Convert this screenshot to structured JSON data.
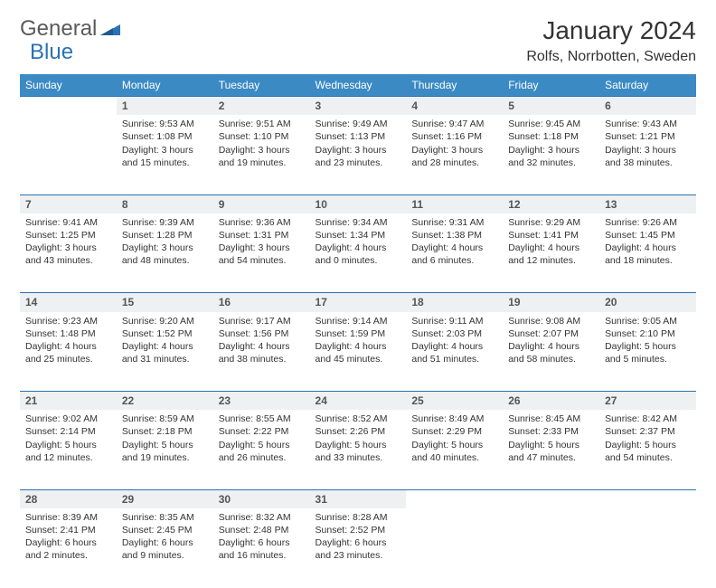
{
  "logo": {
    "part1": "General",
    "part2": "Blue"
  },
  "title": "January 2024",
  "location": "Rolfs, Norrbotten, Sweden",
  "colors": {
    "header_bg": "#3b8ac4",
    "header_text": "#ffffff",
    "daynum_bg": "#eef0f1",
    "border": "#2a72b5",
    "text": "#333333",
    "logo_gray": "#5a5a5a",
    "logo_blue": "#2a72b5"
  },
  "dayNames": [
    "Sunday",
    "Monday",
    "Tuesday",
    "Wednesday",
    "Thursday",
    "Friday",
    "Saturday"
  ],
  "weeks": [
    [
      null,
      {
        "n": "1",
        "sr": "9:53 AM",
        "ss": "1:08 PM",
        "dl": "3 hours and 15 minutes."
      },
      {
        "n": "2",
        "sr": "9:51 AM",
        "ss": "1:10 PM",
        "dl": "3 hours and 19 minutes."
      },
      {
        "n": "3",
        "sr": "9:49 AM",
        "ss": "1:13 PM",
        "dl": "3 hours and 23 minutes."
      },
      {
        "n": "4",
        "sr": "9:47 AM",
        "ss": "1:16 PM",
        "dl": "3 hours and 28 minutes."
      },
      {
        "n": "5",
        "sr": "9:45 AM",
        "ss": "1:18 PM",
        "dl": "3 hours and 32 minutes."
      },
      {
        "n": "6",
        "sr": "9:43 AM",
        "ss": "1:21 PM",
        "dl": "3 hours and 38 minutes."
      }
    ],
    [
      {
        "n": "7",
        "sr": "9:41 AM",
        "ss": "1:25 PM",
        "dl": "3 hours and 43 minutes."
      },
      {
        "n": "8",
        "sr": "9:39 AM",
        "ss": "1:28 PM",
        "dl": "3 hours and 48 minutes."
      },
      {
        "n": "9",
        "sr": "9:36 AM",
        "ss": "1:31 PM",
        "dl": "3 hours and 54 minutes."
      },
      {
        "n": "10",
        "sr": "9:34 AM",
        "ss": "1:34 PM",
        "dl": "4 hours and 0 minutes."
      },
      {
        "n": "11",
        "sr": "9:31 AM",
        "ss": "1:38 PM",
        "dl": "4 hours and 6 minutes."
      },
      {
        "n": "12",
        "sr": "9:29 AM",
        "ss": "1:41 PM",
        "dl": "4 hours and 12 minutes."
      },
      {
        "n": "13",
        "sr": "9:26 AM",
        "ss": "1:45 PM",
        "dl": "4 hours and 18 minutes."
      }
    ],
    [
      {
        "n": "14",
        "sr": "9:23 AM",
        "ss": "1:48 PM",
        "dl": "4 hours and 25 minutes."
      },
      {
        "n": "15",
        "sr": "9:20 AM",
        "ss": "1:52 PM",
        "dl": "4 hours and 31 minutes."
      },
      {
        "n": "16",
        "sr": "9:17 AM",
        "ss": "1:56 PM",
        "dl": "4 hours and 38 minutes."
      },
      {
        "n": "17",
        "sr": "9:14 AM",
        "ss": "1:59 PM",
        "dl": "4 hours and 45 minutes."
      },
      {
        "n": "18",
        "sr": "9:11 AM",
        "ss": "2:03 PM",
        "dl": "4 hours and 51 minutes."
      },
      {
        "n": "19",
        "sr": "9:08 AM",
        "ss": "2:07 PM",
        "dl": "4 hours and 58 minutes."
      },
      {
        "n": "20",
        "sr": "9:05 AM",
        "ss": "2:10 PM",
        "dl": "5 hours and 5 minutes."
      }
    ],
    [
      {
        "n": "21",
        "sr": "9:02 AM",
        "ss": "2:14 PM",
        "dl": "5 hours and 12 minutes."
      },
      {
        "n": "22",
        "sr": "8:59 AM",
        "ss": "2:18 PM",
        "dl": "5 hours and 19 minutes."
      },
      {
        "n": "23",
        "sr": "8:55 AM",
        "ss": "2:22 PM",
        "dl": "5 hours and 26 minutes."
      },
      {
        "n": "24",
        "sr": "8:52 AM",
        "ss": "2:26 PM",
        "dl": "5 hours and 33 minutes."
      },
      {
        "n": "25",
        "sr": "8:49 AM",
        "ss": "2:29 PM",
        "dl": "5 hours and 40 minutes."
      },
      {
        "n": "26",
        "sr": "8:45 AM",
        "ss": "2:33 PM",
        "dl": "5 hours and 47 minutes."
      },
      {
        "n": "27",
        "sr": "8:42 AM",
        "ss": "2:37 PM",
        "dl": "5 hours and 54 minutes."
      }
    ],
    [
      {
        "n": "28",
        "sr": "8:39 AM",
        "ss": "2:41 PM",
        "dl": "6 hours and 2 minutes."
      },
      {
        "n": "29",
        "sr": "8:35 AM",
        "ss": "2:45 PM",
        "dl": "6 hours and 9 minutes."
      },
      {
        "n": "30",
        "sr": "8:32 AM",
        "ss": "2:48 PM",
        "dl": "6 hours and 16 minutes."
      },
      {
        "n": "31",
        "sr": "8:28 AM",
        "ss": "2:52 PM",
        "dl": "6 hours and 23 minutes."
      },
      null,
      null,
      null
    ]
  ],
  "labels": {
    "sunrise": "Sunrise:",
    "sunset": "Sunset:",
    "daylight": "Daylight:"
  }
}
